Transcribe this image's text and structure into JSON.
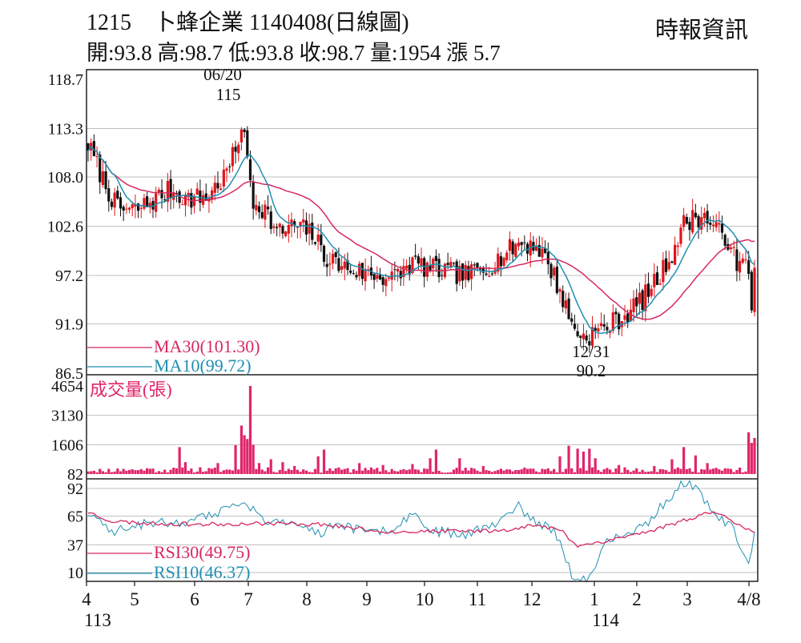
{
  "header": {
    "title": "1215　卜蜂企業 1140408(日線圖)",
    "ohlc": "開:93.8 高:98.7 低:93.8 收:98.7 量:1954 漲 5.7",
    "source": "時報資訊"
  },
  "colors": {
    "up": "#e0161c",
    "down": "#111111",
    "ma30": "#d6295f",
    "ma10": "#1f8fb2",
    "volume": "#e0256a",
    "grid": "#bfbfbf",
    "frame": "#222222"
  },
  "chart_data": [
    {
      "type": "candlestick",
      "panel": "price",
      "ylim": [
        86.5,
        118.7
      ],
      "y_ticks": [
        "118.7",
        "113.3",
        "108.0",
        "102.6",
        "97.2",
        "91.9",
        "86.5"
      ],
      "y_tick_values": [
        118.7,
        113.3,
        108.0,
        102.6,
        97.2,
        91.9,
        86.5
      ],
      "x_ticks": [
        "4",
        "5",
        "6",
        "7",
        "8",
        "9",
        "10",
        "11",
        "12",
        "1",
        "2",
        "3",
        "4/8"
      ],
      "x_tick_sublabels": [
        "113",
        "",
        "",
        "",
        "",
        "",
        "",
        "",
        "",
        "114",
        "",
        "",
        ""
      ],
      "annotations": [
        {
          "date": "06/20",
          "value": "115"
        },
        {
          "date": "12/31",
          "value": "90.2"
        }
      ],
      "close_path": [
        [
          0,
          111.5
        ],
        [
          6,
          107.0
        ],
        [
          10,
          104.5
        ],
        [
          16,
          104.3
        ],
        [
          22,
          105.4
        ],
        [
          28,
          106.6
        ],
        [
          34,
          105.6
        ],
        [
          40,
          105.8
        ],
        [
          46,
          107.9
        ],
        [
          50,
          110.8
        ],
        [
          52,
          113.8
        ],
        [
          54,
          110.0
        ],
        [
          56,
          105.3
        ],
        [
          60,
          104.5
        ],
        [
          64,
          101.8
        ],
        [
          70,
          102.7
        ],
        [
          76,
          101.8
        ],
        [
          80,
          99.4
        ],
        [
          86,
          98.2
        ],
        [
          92,
          97.6
        ],
        [
          98,
          97.2
        ],
        [
          104,
          97.0
        ],
        [
          110,
          98.6
        ],
        [
          116,
          97.9
        ],
        [
          122,
          97.6
        ],
        [
          128,
          97.2
        ],
        [
          134,
          97.8
        ],
        [
          140,
          99.2
        ],
        [
          146,
          100.8
        ],
        [
          152,
          100.5
        ],
        [
          156,
          98.6
        ],
        [
          160,
          95.5
        ],
        [
          164,
          91.8
        ],
        [
          168,
          90.4
        ],
        [
          172,
          91.0
        ],
        [
          176,
          91.7
        ],
        [
          182,
          92.8
        ],
        [
          188,
          94.6
        ],
        [
          194,
          97.2
        ],
        [
          198,
          99.7
        ],
        [
          202,
          102.8
        ],
        [
          206,
          103.7
        ],
        [
          210,
          103.4
        ],
        [
          214,
          101.8
        ],
        [
          218,
          101.0
        ],
        [
          220,
          97.5
        ],
        [
          222,
          98.6
        ],
        [
          224,
          98.2
        ],
        [
          225,
          93.0
        ],
        [
          226,
          98.7
        ]
      ],
      "series": [
        {
          "name": "MA30",
          "value": "(101.30)"
        },
        {
          "name": "MA10",
          "value": "(99.72)"
        }
      ]
    },
    {
      "type": "bar",
      "panel": "volume",
      "title": "成交量(張)",
      "ylim": [
        82,
        4654
      ],
      "y_ticks": [
        "4654",
        "3130",
        "1606",
        "82"
      ],
      "y_tick_values": [
        4654,
        3130,
        1606,
        82
      ],
      "spikes": [
        [
          5,
          230
        ],
        [
          12,
          350
        ],
        [
          16,
          280
        ],
        [
          20,
          380
        ],
        [
          28,
          300
        ],
        [
          31,
          1480
        ],
        [
          33,
          700
        ],
        [
          38,
          430
        ],
        [
          44,
          650
        ],
        [
          50,
          1580
        ],
        [
          52,
          2600
        ],
        [
          53,
          2100
        ],
        [
          54,
          1900
        ],
        [
          55,
          4654
        ],
        [
          56,
          1600
        ],
        [
          58,
          650
        ],
        [
          62,
          850
        ],
        [
          66,
          700
        ],
        [
          70,
          500
        ],
        [
          78,
          1000
        ],
        [
          80,
          1350
        ],
        [
          84,
          380
        ],
        [
          92,
          650
        ],
        [
          100,
          550
        ],
        [
          110,
          600
        ],
        [
          116,
          900
        ],
        [
          118,
          1350
        ],
        [
          126,
          900
        ],
        [
          134,
          500
        ],
        [
          140,
          360
        ],
        [
          148,
          420
        ],
        [
          156,
          380
        ],
        [
          160,
          1000
        ],
        [
          163,
          1550
        ],
        [
          166,
          1400
        ],
        [
          168,
          1250
        ],
        [
          170,
          1400
        ],
        [
          172,
          900
        ],
        [
          180,
          550
        ],
        [
          186,
          380
        ],
        [
          192,
          500
        ],
        [
          198,
          850
        ],
        [
          202,
          1480
        ],
        [
          206,
          1050
        ],
        [
          210,
          650
        ],
        [
          216,
          380
        ],
        [
          224,
          2250
        ],
        [
          225,
          1700
        ],
        [
          226,
          1954
        ]
      ]
    },
    {
      "type": "line",
      "panel": "rsi",
      "ylim": [
        0,
        100
      ],
      "y_ticks": [
        "92",
        "65",
        "37",
        "10"
      ],
      "y_tick_values": [
        92,
        65,
        37,
        10
      ],
      "series": [
        {
          "name": "RSI30",
          "value": "(49.75)",
          "points": [
            [
              0,
              69
            ],
            [
              8,
              60
            ],
            [
              20,
              58
            ],
            [
              40,
              57
            ],
            [
              60,
              58
            ],
            [
              80,
              57
            ],
            [
              100,
              50
            ],
            [
              120,
              50
            ],
            [
              140,
              51
            ],
            [
              150,
              56
            ],
            [
              160,
              52
            ],
            [
              166,
              36
            ],
            [
              174,
              40
            ],
            [
              190,
              50
            ],
            [
              200,
              59
            ],
            [
              212,
              70
            ],
            [
              218,
              61
            ],
            [
              226,
              50
            ]
          ]
        },
        {
          "name": "RSI10",
          "value": "(46.37)",
          "points": [
            [
              0,
              67
            ],
            [
              8,
              50
            ],
            [
              20,
              58
            ],
            [
              36,
              60
            ],
            [
              48,
              72
            ],
            [
              54,
              78
            ],
            [
              60,
              58
            ],
            [
              72,
              57
            ],
            [
              78,
              48
            ],
            [
              86,
              58
            ],
            [
              94,
              48
            ],
            [
              102,
              52
            ],
            [
              110,
              68
            ],
            [
              118,
              50
            ],
            [
              128,
              48
            ],
            [
              140,
              60
            ],
            [
              146,
              74
            ],
            [
              152,
              58
            ],
            [
              158,
              52
            ],
            [
              164,
              8
            ],
            [
              170,
              5
            ],
            [
              176,
              40
            ],
            [
              184,
              48
            ],
            [
              190,
              60
            ],
            [
              196,
              80
            ],
            [
              202,
              98
            ],
            [
              206,
              95
            ],
            [
              212,
              68
            ],
            [
              218,
              55
            ],
            [
              224,
              20
            ],
            [
              226,
              46
            ]
          ]
        }
      ]
    }
  ]
}
